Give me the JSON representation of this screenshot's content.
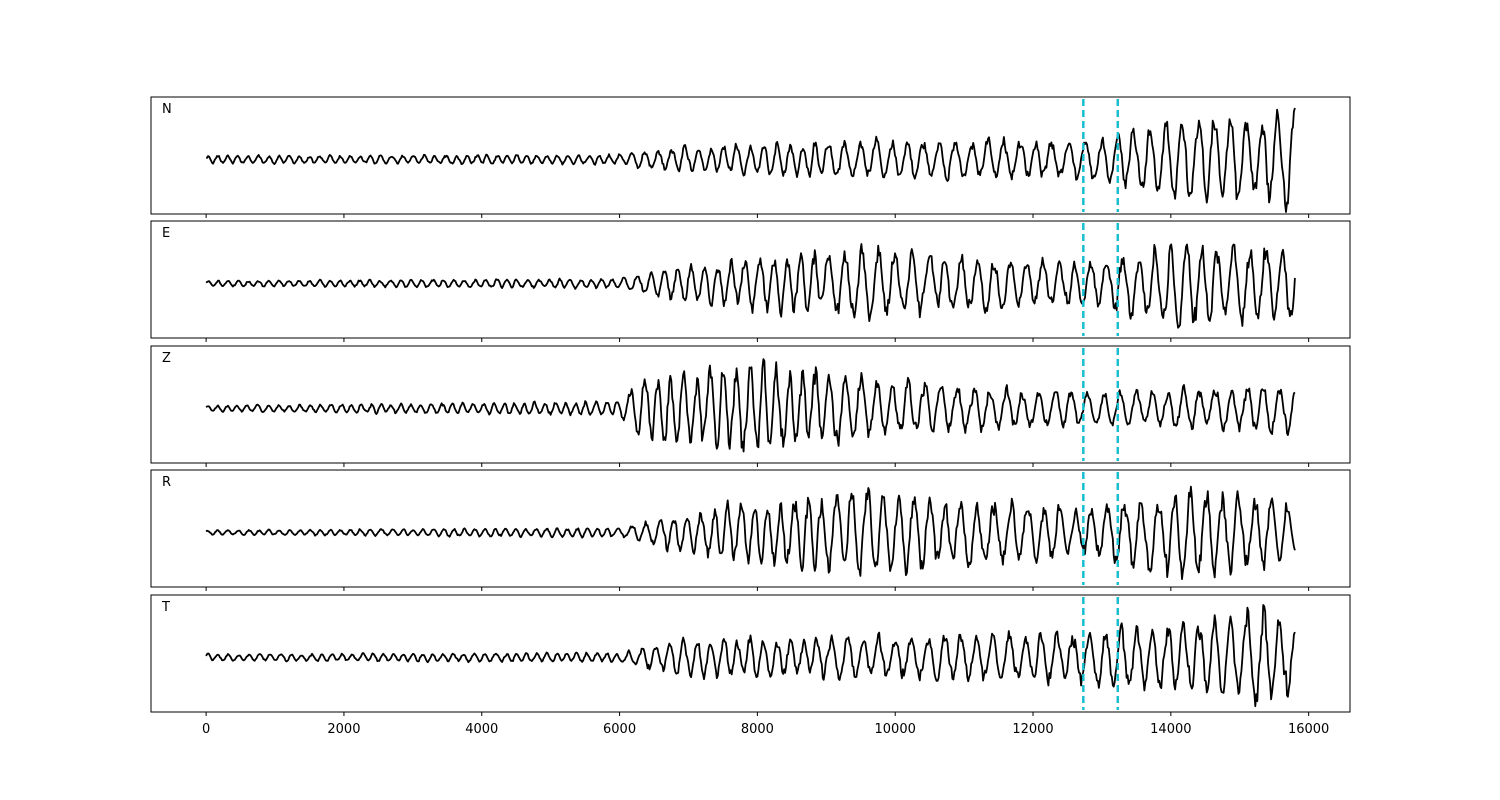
{
  "chart_data": {
    "type": "line",
    "title": "",
    "xlabel": "",
    "ylabel": "",
    "xlim": [
      -800,
      16600
    ],
    "x_ticks": [
      0,
      2000,
      4000,
      6000,
      8000,
      10000,
      12000,
      14000,
      16000
    ],
    "x_tick_labels": [
      "0",
      "2000",
      "4000",
      "6000",
      "8000",
      "10000",
      "12000",
      "14000",
      "16000"
    ],
    "n_samples": 15801,
    "x_start": 0,
    "x_end": 15800,
    "markers": {
      "color": "#17becf",
      "style": "dashed",
      "x": [
        12730,
        13230
      ]
    },
    "trace_color": "#000000",
    "panels": [
      {
        "label": "N",
        "amplitude_profile": [
          [
            0,
            0.08
          ],
          [
            6000,
            0.1
          ],
          [
            6800,
            0.28
          ],
          [
            10000,
            0.4
          ],
          [
            12700,
            0.4
          ],
          [
            14300,
            0.85
          ],
          [
            15800,
            1.0
          ]
        ]
      },
      {
        "label": "E",
        "amplitude_profile": [
          [
            0,
            0.06
          ],
          [
            6000,
            0.1
          ],
          [
            7000,
            0.4
          ],
          [
            9400,
            0.7
          ],
          [
            12700,
            0.45
          ],
          [
            14300,
            0.9
          ],
          [
            15800,
            0.7
          ]
        ]
      },
      {
        "label": "Z",
        "amplitude_profile": [
          [
            0,
            0.06
          ],
          [
            6000,
            0.15
          ],
          [
            6300,
            0.7
          ],
          [
            7900,
            0.9
          ],
          [
            11000,
            0.45
          ],
          [
            13000,
            0.35
          ],
          [
            15800,
            0.5
          ]
        ]
      },
      {
        "label": "R",
        "amplitude_profile": [
          [
            0,
            0.05
          ],
          [
            6000,
            0.1
          ],
          [
            7000,
            0.45
          ],
          [
            9400,
            0.9
          ],
          [
            12700,
            0.5
          ],
          [
            14300,
            0.95
          ],
          [
            15800,
            0.6
          ]
        ]
      },
      {
        "label": "T",
        "amplitude_profile": [
          [
            0,
            0.07
          ],
          [
            6000,
            0.1
          ],
          [
            7000,
            0.4
          ],
          [
            12700,
            0.5
          ],
          [
            13000,
            0.55
          ],
          [
            15400,
            1.0
          ],
          [
            15800,
            0.6
          ]
        ]
      }
    ]
  }
}
